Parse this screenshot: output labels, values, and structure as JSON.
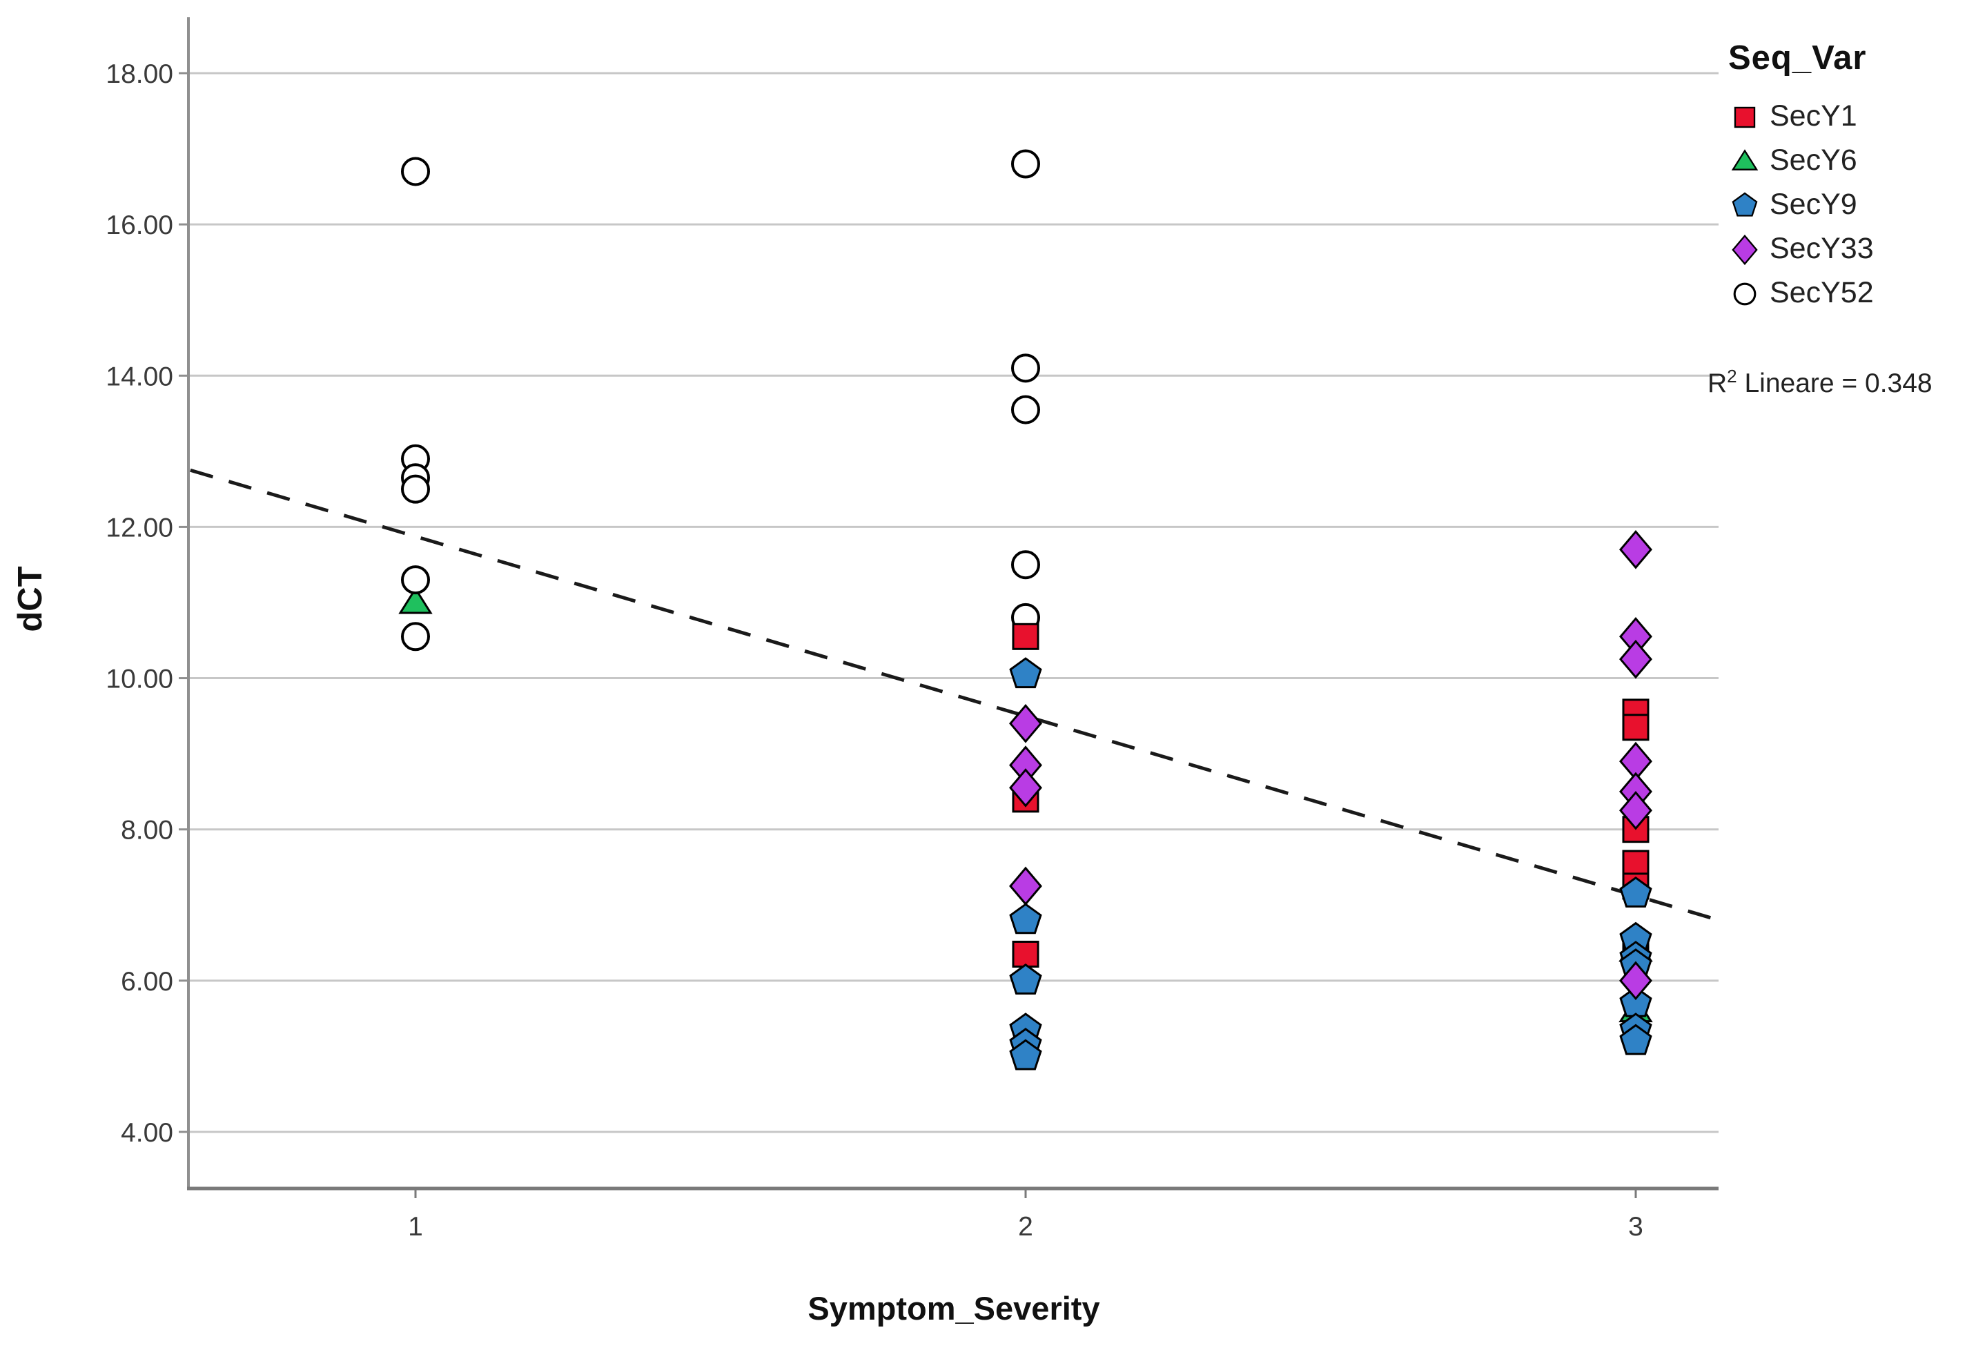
{
  "chart_data": {
    "type": "scatter",
    "title": "",
    "xlabel": "Symptom_Severity",
    "ylabel": "dCT",
    "x_ticks": [
      "1",
      "2",
      "3"
    ],
    "y_ticks": [
      "18.00",
      "16.00",
      "14.00",
      "12.00",
      "10.00",
      "8.00",
      "6.00",
      "4.00"
    ],
    "xlim": [
      0.63,
      3.14
    ],
    "ylim": [
      3.3,
      18.7
    ],
    "grid": true,
    "legend_position": "top-right",
    "annotation": "R2 Lineare = 0.348",
    "series": [
      {
        "name": "SecY1",
        "marker": "square",
        "color": "#e8112d",
        "points": [
          [
            2,
            10.55
          ],
          [
            2,
            8.4
          ],
          [
            2,
            6.35
          ],
          [
            3,
            9.55
          ],
          [
            3,
            9.35
          ],
          [
            3,
            8.0
          ],
          [
            3,
            7.55
          ],
          [
            3,
            7.25
          ],
          [
            3,
            6.4
          ]
        ]
      },
      {
        "name": "SecY6",
        "marker": "triangle",
        "color": "#1fc05e",
        "points": [
          [
            1,
            11.0
          ],
          [
            3,
            6.4
          ],
          [
            3,
            5.6
          ]
        ]
      },
      {
        "name": "SecY9",
        "marker": "pentagon",
        "color": "#2f82c6",
        "points": [
          [
            2,
            10.05
          ],
          [
            2,
            6.8
          ],
          [
            2,
            6.0
          ],
          [
            2,
            5.35
          ],
          [
            2,
            5.15
          ],
          [
            2,
            5.0
          ],
          [
            3,
            7.15
          ],
          [
            3,
            6.55
          ],
          [
            3,
            6.3
          ],
          [
            3,
            6.2
          ],
          [
            3,
            5.7
          ],
          [
            3,
            5.35
          ],
          [
            3,
            5.2
          ]
        ]
      },
      {
        "name": "SecY33",
        "marker": "diamond",
        "color": "#b93ce4",
        "points": [
          [
            2,
            9.4
          ],
          [
            2,
            8.85
          ],
          [
            2,
            8.55
          ],
          [
            2,
            7.25
          ],
          [
            3,
            11.7
          ],
          [
            3,
            10.55
          ],
          [
            3,
            10.25
          ],
          [
            3,
            8.9
          ],
          [
            3,
            8.5
          ],
          [
            3,
            8.25
          ],
          [
            3,
            6.0
          ]
        ]
      },
      {
        "name": "SecY52",
        "marker": "circle",
        "color": "#ffffff",
        "points": [
          [
            1,
            16.7
          ],
          [
            1,
            12.9
          ],
          [
            1,
            12.65
          ],
          [
            1,
            12.5
          ],
          [
            1,
            11.3
          ],
          [
            1,
            10.55
          ],
          [
            2,
            16.8
          ],
          [
            2,
            14.1
          ],
          [
            2,
            13.55
          ],
          [
            2,
            11.5
          ],
          [
            2,
            10.8
          ]
        ]
      }
    ],
    "trend_line": {
      "style": "dashed",
      "x1": 0.631,
      "y1": 12.75,
      "x2": 3.136,
      "y2": 6.8
    }
  },
  "legend": {
    "title": "Seq_Var",
    "items": [
      {
        "label": "SecY1",
        "marker": "square",
        "color": "#e8112d"
      },
      {
        "label": "SecY6",
        "marker": "triangle",
        "color": "#1fc05e"
      },
      {
        "label": "SecY9",
        "marker": "pentagon",
        "color": "#2f82c6"
      },
      {
        "label": "SecY33",
        "marker": "diamond",
        "color": "#b93ce4"
      },
      {
        "label": "SecY52",
        "marker": "circle",
        "color": "#ffffff"
      }
    ],
    "r2_base": "R",
    "r2_sup": "2",
    "r2_rest": " Lineare = 0.348"
  },
  "style_colors": {
    "gridline": "#c7c7c7",
    "y_axis": "#8f8f8f",
    "x_axis": "#7a7a7a",
    "marker_outline": "#000000",
    "trend_line": "#1a1a1a",
    "tick_label": "#3a3a3a"
  }
}
